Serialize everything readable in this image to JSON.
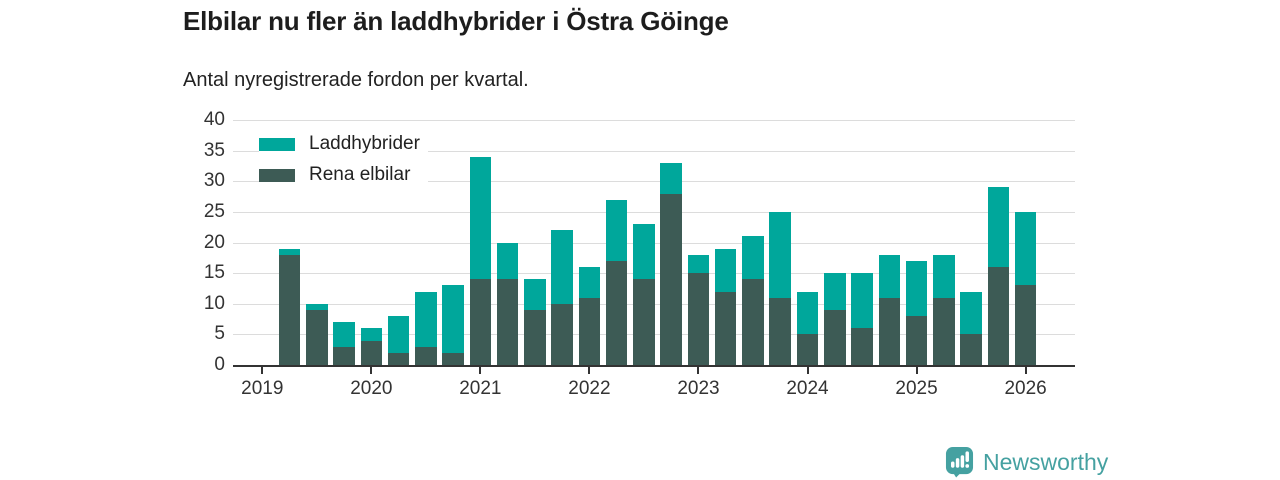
{
  "header": {
    "title": "Elbilar nu fler än laddhybrider i Östra Göinge",
    "subtitle": "Antal nyregistrerade fordon per kvartal."
  },
  "legend": {
    "items": [
      {
        "label": "Laddhybrider",
        "color": "#00a79b"
      },
      {
        "label": "Rena elbilar",
        "color": "#3d5b55"
      }
    ]
  },
  "chart_data": {
    "type": "bar",
    "stacked": true,
    "title": "Elbilar nu fler än laddhybrider i Östra Göinge",
    "subtitle": "Antal nyregistrerade fordon per kvartal.",
    "xlabel": "",
    "ylabel": "",
    "ylim": [
      0,
      40
    ],
    "y_ticks": [
      0,
      5,
      10,
      15,
      20,
      25,
      30,
      35,
      40
    ],
    "grid": "horizontal",
    "legend_position": "top-left-inside",
    "categories": [
      "2019Q2",
      "2019Q3",
      "2019Q4",
      "2020Q1",
      "2020Q2",
      "2020Q3",
      "2020Q4",
      "2021Q1",
      "2021Q2",
      "2021Q3",
      "2021Q4",
      "2022Q1",
      "2022Q2",
      "2022Q3",
      "2022Q4",
      "2023Q1",
      "2023Q2",
      "2023Q3",
      "2023Q4",
      "2024Q1",
      "2024Q2",
      "2024Q3",
      "2024Q4",
      "2025Q1",
      "2025Q2",
      "2025Q3",
      "2025Q4",
      "2026Q1"
    ],
    "x_tick_labels": [
      "2019",
      "2020",
      "2021",
      "2022",
      "2023",
      "2024",
      "2025",
      "2026"
    ],
    "series": [
      {
        "name": "Rena elbilar",
        "color": "#3d5b55",
        "values": [
          18,
          9,
          3,
          4,
          2,
          3,
          2,
          14,
          14,
          9,
          10,
          11,
          17,
          14,
          28,
          15,
          12,
          14,
          11,
          5,
          9,
          6,
          11,
          8,
          11,
          5,
          16,
          13
        ]
      },
      {
        "name": "Laddhybrider",
        "color": "#00a79b",
        "values": [
          1,
          1,
          4,
          2,
          6,
          9,
          11,
          20,
          6,
          5,
          12,
          5,
          10,
          9,
          5,
          3,
          7,
          7,
          14,
          7,
          6,
          9,
          7,
          9,
          7,
          7,
          13,
          12
        ]
      }
    ],
    "totals": [
      19,
      10,
      7,
      6,
      8,
      12,
      13,
      34,
      20,
      14,
      22,
      16,
      27,
      23,
      33,
      18,
      19,
      21,
      25,
      12,
      15,
      15,
      18,
      17,
      18,
      12,
      29,
      25
    ],
    "axis_color": "#333333",
    "grid_color": "#dcdcdc"
  },
  "footer": {
    "brand": "Newsworthy",
    "brand_color": "#45a1a1",
    "logo_icon": "bar-chart-speech-bubble"
  }
}
